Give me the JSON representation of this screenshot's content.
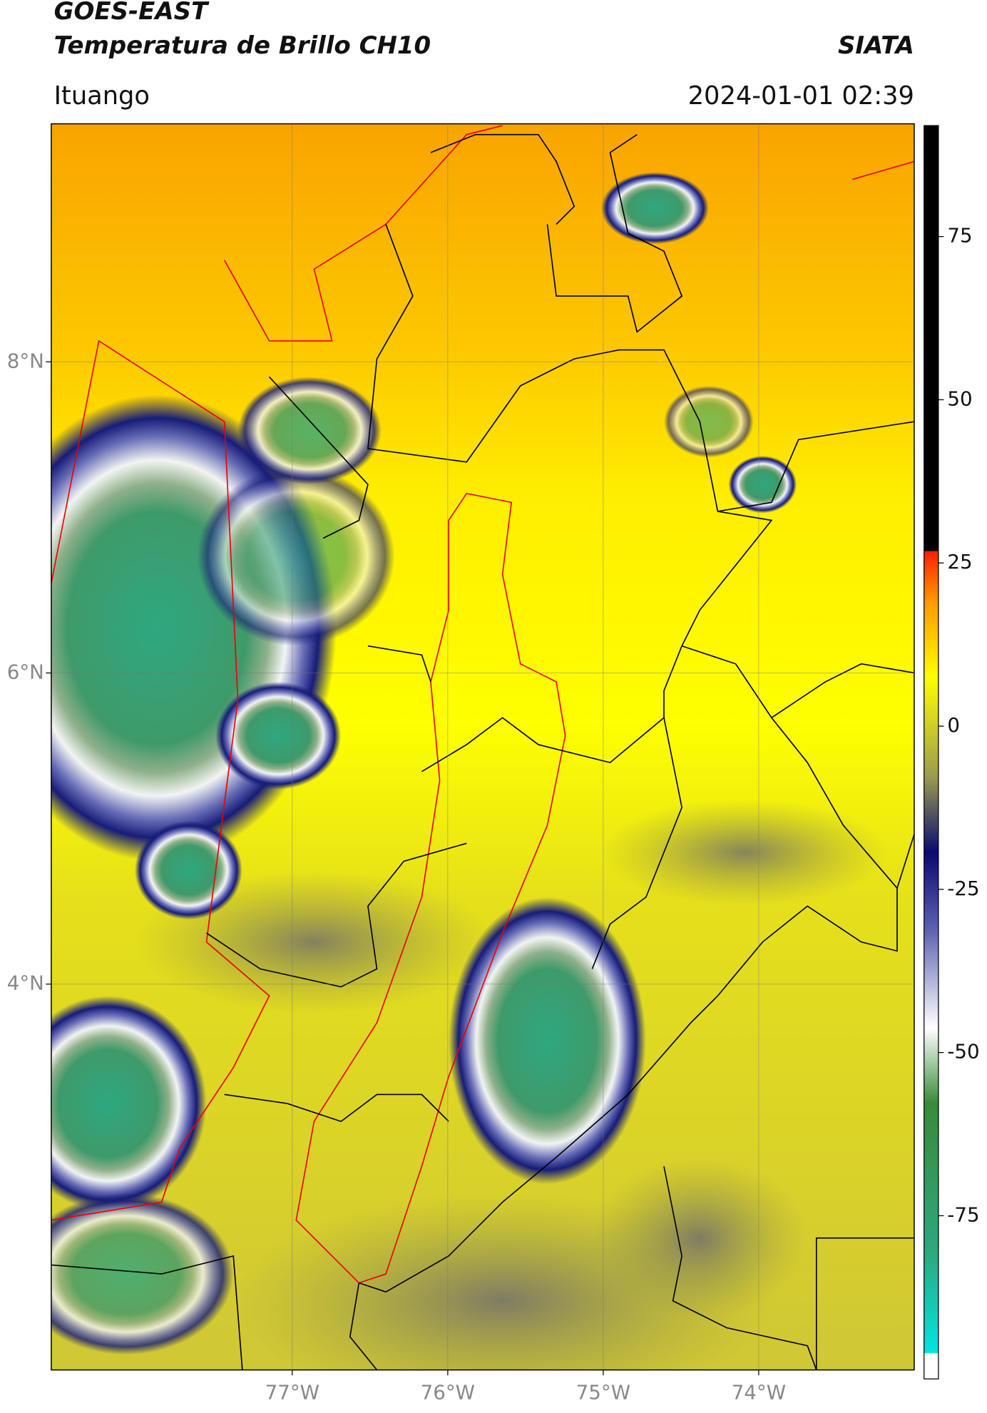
{
  "header": {
    "title": "GOES-EAST",
    "subtitle": "Temperatura de Brillo CH10",
    "brand": "SIATA",
    "location": "Ituango",
    "datetime": "2024-01-01 02:39"
  },
  "map": {
    "xlim": [
      -78.55,
      -73.0
    ],
    "ylim": [
      1.52,
      9.53
    ],
    "xticks": [
      {
        "value": -77,
        "label": "77°W"
      },
      {
        "value": -76,
        "label": "76°W"
      },
      {
        "value": -75,
        "label": "75°W"
      },
      {
        "value": -74,
        "label": "74°W"
      }
    ],
    "yticks": [
      {
        "value": 8,
        "label": "8°N"
      },
      {
        "value": 6,
        "label": "6°N"
      },
      {
        "value": 4,
        "label": "4°N"
      }
    ],
    "grid": true
  },
  "colorbar": {
    "lim": [
      -100,
      92
    ],
    "ticks": [
      75,
      50,
      25,
      0,
      -25,
      -50,
      -75
    ]
  }
}
